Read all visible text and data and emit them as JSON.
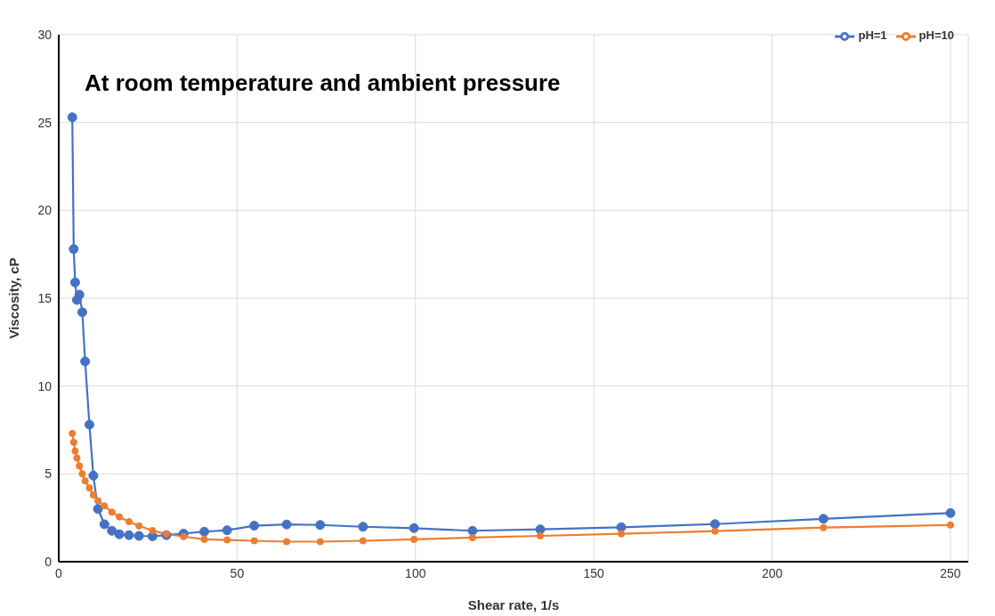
{
  "chart_data": {
    "type": "line",
    "title": "At room temperature and ambient pressure",
    "xlabel": "Shear rate, 1/s",
    "ylabel": "Viscosity, cP",
    "x": [
      3.8,
      4.2,
      4.6,
      5.1,
      5.8,
      6.6,
      7.4,
      8.6,
      9.7,
      11,
      12.8,
      14.9,
      17,
      19.7,
      22.5,
      26.3,
      30.2,
      35,
      40.8,
      47.2,
      54.8,
      63.9,
      73.3,
      85.3,
      99.6,
      116,
      135,
      157.7,
      184,
      214.4,
      250
    ],
    "series": [
      {
        "name": "pH=1",
        "color": "#4472c4",
        "values": [
          25.3,
          17.8,
          15.9,
          14.9,
          15.2,
          14.2,
          11.4,
          7.8,
          4.9,
          3.0,
          2.13,
          1.76,
          1.56,
          1.51,
          1.47,
          1.45,
          1.51,
          1.6,
          1.71,
          1.79,
          2.05,
          2.12,
          2.09,
          1.99,
          1.91,
          1.76,
          1.84,
          1.96,
          2.14,
          2.44,
          2.77
        ]
      },
      {
        "name": "pH=10",
        "color": "#ed7d31",
        "values": [
          7.3,
          6.8,
          6.3,
          5.9,
          5.45,
          5.0,
          4.6,
          4.2,
          3.8,
          3.47,
          3.18,
          2.82,
          2.55,
          2.28,
          2.04,
          1.77,
          1.58,
          1.43,
          1.27,
          1.24,
          1.19,
          1.14,
          1.14,
          1.19,
          1.27,
          1.37,
          1.47,
          1.59,
          1.74,
          1.94,
          2.09
        ]
      }
    ],
    "xlim": [
      0,
      255
    ],
    "ylim": [
      0,
      30
    ],
    "xticks": [
      0,
      50,
      100,
      150,
      200,
      250
    ],
    "yticks": [
      0,
      5,
      10,
      15,
      20,
      25,
      30
    ],
    "grid": true,
    "legend": "top right",
    "marker": "circle",
    "line_style": "solid"
  }
}
